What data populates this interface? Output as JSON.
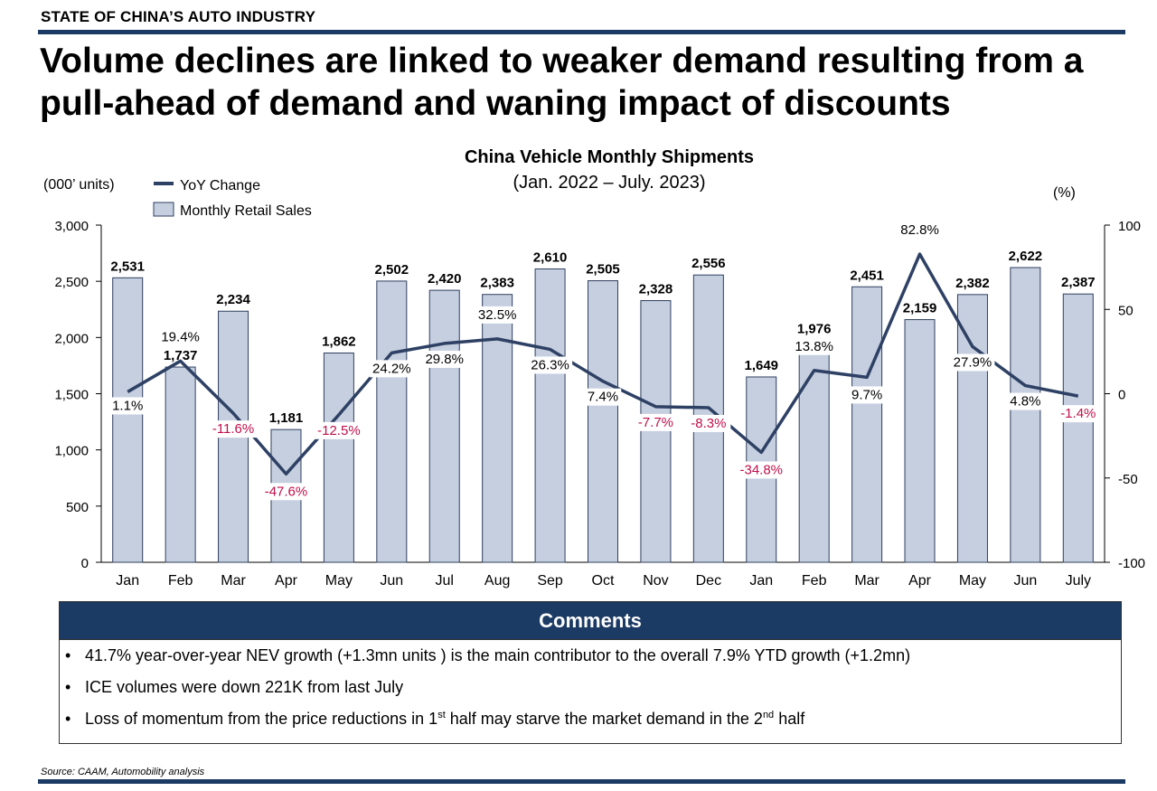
{
  "section_tag": "STATE OF CHINA’S AUTO INDUSTRY",
  "headline": "Volume declines are linked to weaker demand resulting from a pull-ahead of demand and waning impact of discounts",
  "chart_data": {
    "type": "bar",
    "title": "China Vehicle Monthly Shipments",
    "subtitle": "(Jan. 2022 – July. 2023)",
    "ylabel": "(000’ units)",
    "y2label": "(%)",
    "ylim": [
      0,
      3000
    ],
    "y2lim": [
      -100,
      100
    ],
    "yticks": [
      "0",
      "500",
      "1,000",
      "1,500",
      "2,000",
      "2,500",
      "3,000"
    ],
    "y2ticks": [
      "-100",
      "-50",
      "0",
      "50",
      "100"
    ],
    "legend_placement": "top-left",
    "categories": [
      "Jan",
      "Feb",
      "Mar",
      "Apr",
      "May",
      "Jun",
      "Jul",
      "Aug",
      "Sep",
      "Oct",
      "Nov",
      "Dec",
      "Jan",
      "Feb",
      "Mar",
      "Apr",
      "May",
      "Jun",
      "July"
    ],
    "series": [
      {
        "name": "Monthly Retail Sales",
        "type": "bar",
        "axis": "left",
        "values": [
          2531,
          1737,
          2234,
          1181,
          1862,
          2502,
          2420,
          2383,
          2610,
          2505,
          2328,
          2556,
          1649,
          1976,
          2451,
          2159,
          2382,
          2622,
          2387
        ],
        "labels": [
          "2,531",
          "1,737",
          "2,234",
          "1,181",
          "1,862",
          "2,502",
          "2,420",
          "2,383",
          "2,610",
          "2,505",
          "2,328",
          "2,556",
          "1,649",
          "1,976",
          "2,451",
          "2,159",
          "2,382",
          "2,622",
          "2,387"
        ]
      },
      {
        "name": "YoY Change",
        "type": "line",
        "axis": "right",
        "values": [
          1.1,
          19.4,
          -11.6,
          -47.6,
          -12.5,
          24.2,
          29.8,
          32.5,
          26.3,
          7.4,
          -7.7,
          -8.3,
          -34.8,
          13.8,
          9.7,
          82.8,
          27.9,
          4.8,
          -1.4
        ],
        "labels": [
          "1.1%",
          "19.4%",
          "-11.6%",
          "-47.6%",
          "-12.5%",
          "24.2%",
          "29.8%",
          "32.5%",
          "26.3%",
          "7.4%",
          "-7.7%",
          "-8.3%",
          "-34.8%",
          "13.8%",
          "9.7%",
          "82.8%",
          "27.9%",
          "4.8%",
          "-1.4%"
        ]
      }
    ],
    "colors": {
      "bar_fill": "#c6cfe0",
      "bar_stroke": "#2e3f5e",
      "line": "#2e4164",
      "negative_label": "#c0104a",
      "positive_label": "#000000"
    }
  },
  "comments": {
    "heading": "Comments",
    "items": [
      {
        "text": "41.7% year-over-year NEV growth (+1.3mn units ) is the main contributor to the overall 7.9% YTD growth (+1.2mn)"
      },
      {
        "text": "ICE volumes were down 221K from last July"
      },
      {
        "pre": "Loss of momentum from the price reductions in 1",
        "sup1": "st",
        "mid": " half may starve the market demand in the 2",
        "sup2": "nd",
        "post": " half"
      }
    ]
  },
  "source": "Source: CAAM, Automobility analysis",
  "colors": {
    "brand_navy": "#1b3a64"
  }
}
